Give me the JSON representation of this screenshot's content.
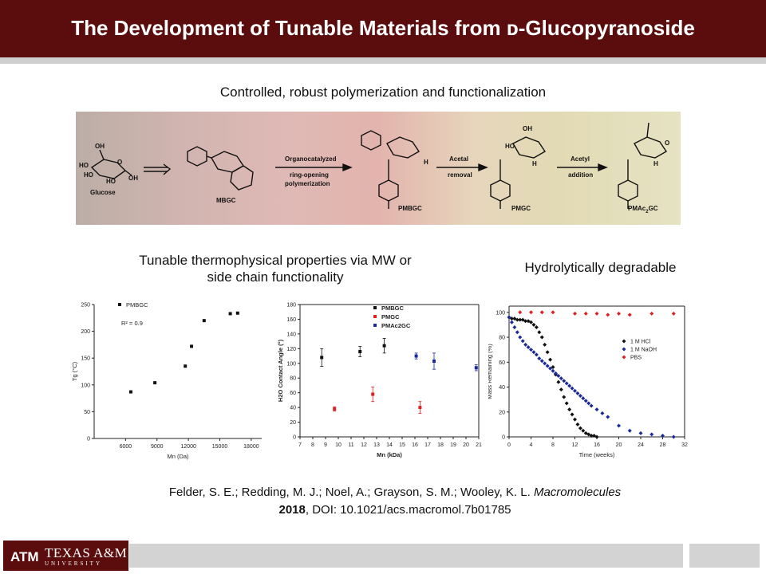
{
  "header": {
    "title": "The Development of Tunable Materials from ᴅ-Glucopyranoside"
  },
  "section_top": {
    "title": "Controlled, robust polymerization and functionalization"
  },
  "scheme": {
    "glucose_label": "Glucose",
    "glucose_groups": [
      "OH",
      "HO",
      "HO",
      "HO",
      "O",
      "OH"
    ],
    "mbgc_label": "MBGC",
    "step1_line1": "Organocatalyzed",
    "step1_line2": "ring-opening",
    "step1_line3": "polymerization",
    "pmbgc_label": "PMBGC",
    "step2_line1": "Acetal",
    "step2_line2": "removal",
    "pmgc_label": "PMGC",
    "step3_line1": "Acetyl",
    "step3_line2": "addition",
    "pmac_label": "PMAc",
    "pmac_sub": "2",
    "pmac_suffix": "GC",
    "atom_labels": {
      "o": "O",
      "h": "H",
      "ho": "HO",
      "oh": "OH"
    }
  },
  "section_left": {
    "title_line1": "Tunable thermophysical properties via MW or",
    "title_line2": "side chain functionality"
  },
  "section_right": {
    "title": "Hydrolytically degradable"
  },
  "citation": {
    "line1_authors": "Felder, S. E.; Redding, M. J.; Noel, A.; Grayson, S. M.; Wooley, K. L.",
    "line1_journal": "Macromolecules",
    "line2_year": "2018",
    "line2_rest": ", DOI: 10.1021/acs.macromol.7b01785"
  },
  "logo": {
    "name": "TEXAS A&M",
    "subtitle": "UNIVERSITY",
    "mark": "ATM"
  },
  "chart_data": [
    {
      "type": "scatter",
      "xlabel": "Mn (Da)",
      "ylabel": "Tg (°C)",
      "xlim": [
        3000,
        19000
      ],
      "ylim": [
        0,
        250
      ],
      "xticks": [
        "6000",
        "9000",
        "12000",
        "15000",
        "18000"
      ],
      "yticks": [
        "0",
        "50",
        "100",
        "150",
        "200",
        "250"
      ],
      "annotation": "R² = 0.9",
      "series": [
        {
          "name": "PMBGC",
          "color": "#111111",
          "marker": "square",
          "x": [
            6500,
            8800,
            11700,
            12300,
            13500,
            16000,
            16700
          ],
          "y": [
            87,
            104,
            135,
            172,
            220,
            233,
            234
          ]
        }
      ]
    },
    {
      "type": "scatter",
      "xlabel": "Mn (kDa)",
      "ylabel": "H2O Contact Angle (°)",
      "xlim": [
        7,
        21
      ],
      "ylim": [
        0,
        180
      ],
      "xticks": [
        "7",
        "8",
        "9",
        "10",
        "11",
        "12",
        "13",
        "14",
        "15",
        "16",
        "17",
        "18",
        "19",
        "20",
        "21"
      ],
      "yticks": [
        "0",
        "20",
        "40",
        "60",
        "80",
        "100",
        "120",
        "140",
        "160",
        "180"
      ],
      "series": [
        {
          "name": "PMBGC",
          "color": "#111111",
          "marker": "square",
          "x": [
            8.7,
            11.7,
            13.6
          ],
          "y": [
            108,
            116,
            124
          ],
          "err": [
            12,
            7,
            10
          ]
        },
        {
          "name": "PMGC",
          "color": "#e02020",
          "marker": "square",
          "x": [
            9.7,
            12.7,
            16.4
          ],
          "y": [
            38,
            58,
            40
          ],
          "err": [
            3,
            10,
            8
          ]
        },
        {
          "name": "PMAc2GC",
          "color": "#1a2a9a",
          "marker": "square",
          "x": [
            16.1,
            17.5,
            20.8
          ],
          "y": [
            110,
            103,
            94
          ],
          "err": [
            4,
            11,
            4
          ]
        }
      ]
    },
    {
      "type": "scatter",
      "xlabel": "Time (weeks)",
      "ylabel": "Mass Remaining (%)",
      "xlim": [
        0,
        32
      ],
      "ylim": [
        0,
        105
      ],
      "xticks": [
        "0",
        "4",
        "8",
        "12",
        "16",
        "20",
        "24",
        "28",
        "32"
      ],
      "yticks": [
        "0",
        "20",
        "40",
        "60",
        "80",
        "100"
      ],
      "series": [
        {
          "name": "1 M HCl",
          "color": "#111111",
          "marker": "diamond",
          "x": [
            0,
            0.5,
            1,
            1.5,
            2,
            2.5,
            3,
            3.5,
            4,
            4.5,
            5,
            5.5,
            6,
            6.5,
            7,
            7.5,
            8,
            8.5,
            9,
            9.5,
            10,
            10.5,
            11,
            11.5,
            12,
            12.5,
            13,
            13.5,
            14,
            14.5,
            15,
            15.5,
            16
          ],
          "y": [
            96,
            95,
            95,
            94,
            94,
            94,
            93,
            93,
            92,
            90,
            88,
            84,
            80,
            74,
            68,
            62,
            56,
            50,
            44,
            38,
            32,
            27,
            22,
            18,
            14,
            10,
            7,
            5,
            3,
            2,
            1,
            1,
            0
          ]
        },
        {
          "name": "1 M NaOH",
          "color": "#1a2a9a",
          "marker": "diamond",
          "x": [
            0,
            0.5,
            1,
            1.5,
            2,
            2.5,
            3,
            3.5,
            4,
            4.5,
            5,
            5.5,
            6,
            6.5,
            7,
            7.5,
            8,
            8.5,
            9,
            9.5,
            10,
            10.5,
            11,
            11.5,
            12,
            12.5,
            13,
            13.5,
            14,
            14.5,
            15,
            16,
            17,
            18,
            20,
            22,
            24,
            26,
            28,
            30
          ],
          "y": [
            96,
            92,
            88,
            84,
            80,
            77,
            74,
            72,
            70,
            68,
            66,
            63,
            61,
            59,
            57,
            55,
            53,
            51,
            49,
            47,
            45,
            43,
            41,
            39,
            37,
            35,
            33,
            31,
            29,
            27,
            25,
            22,
            19,
            16,
            9,
            5,
            3,
            2,
            1,
            0
          ]
        },
        {
          "name": "PBS",
          "color": "#e02020",
          "marker": "diamond",
          "x": [
            2,
            4,
            6,
            8,
            12,
            14,
            16,
            18,
            20,
            22,
            26,
            30
          ],
          "y": [
            100,
            100,
            100,
            100,
            99,
            99,
            99,
            98,
            99,
            98,
            99,
            99
          ]
        }
      ]
    }
  ]
}
